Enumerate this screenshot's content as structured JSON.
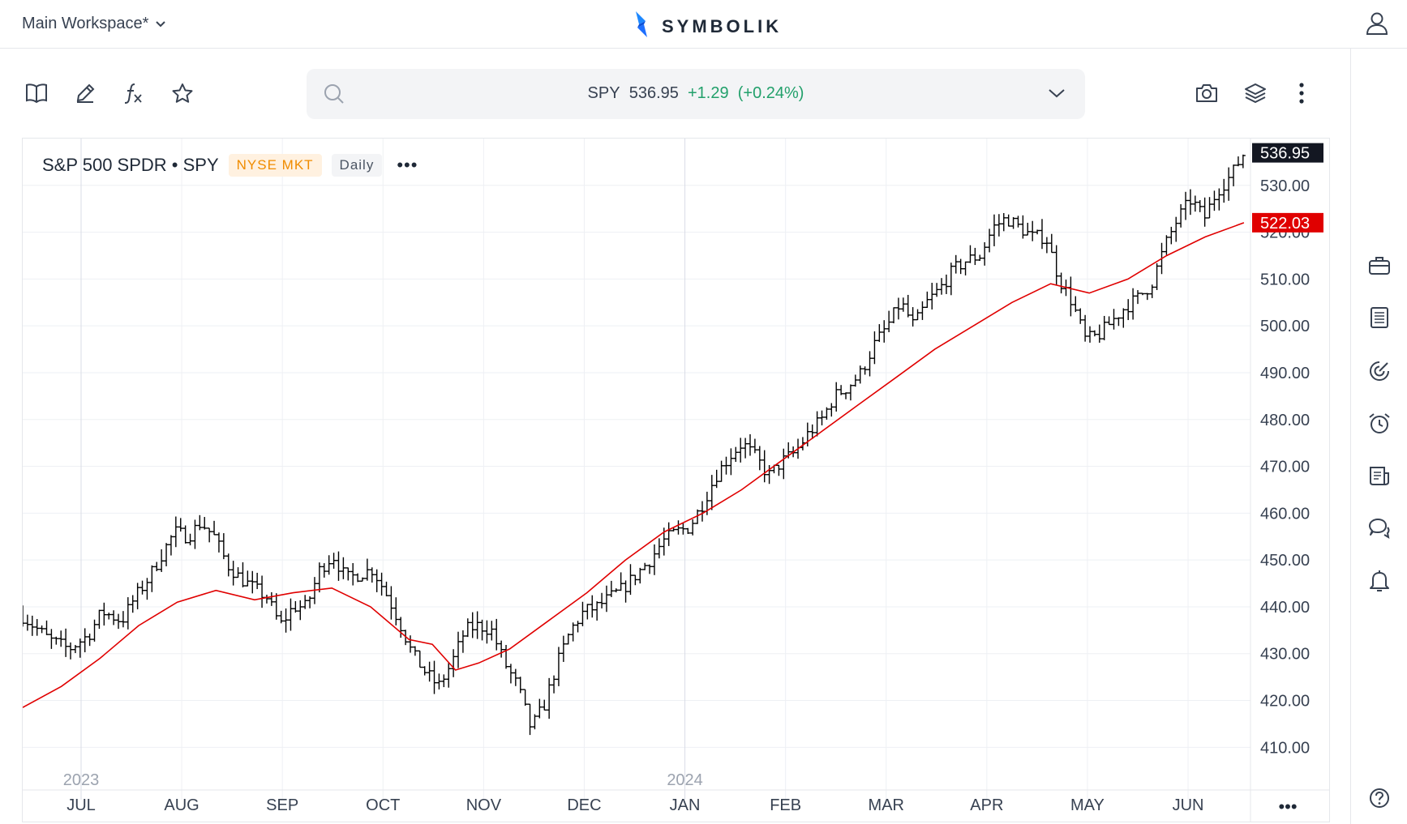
{
  "header": {
    "workspace_label": "Main Workspace*",
    "logo_text": "SYMBOLIK",
    "logo_color": "#1e88ff"
  },
  "search": {
    "symbol": "SPY",
    "price": "536.95",
    "change": "+1.29",
    "change_pct": "(+0.24%)",
    "change_color": "#22a06b"
  },
  "legend": {
    "title": "S&P 500 SPDR • SPY",
    "exchange": "NYSE MKT",
    "interval": "Daily",
    "more": "•••"
  },
  "toolbar": {
    "left_icons": [
      "book-icon",
      "pencil-icon",
      "function-icon",
      "star-icon"
    ],
    "right_icons": [
      "camera-icon",
      "layers-icon",
      "kebab-menu-icon"
    ]
  },
  "right_rail": {
    "icons": [
      "briefcase-icon",
      "list-icon",
      "radar-icon",
      "alarm-icon",
      "news-icon",
      "chat-icon",
      "bell-icon",
      "help-icon"
    ]
  },
  "bottom": {
    "more": "•••"
  },
  "chart_data": {
    "type": "ohlc",
    "title": "S&P 500 SPDR • SPY",
    "interval": "Daily",
    "x_axis": {
      "labels": [
        "JUL",
        "AUG",
        "SEP",
        "OCT",
        "NOV",
        "DEC",
        "JAN",
        "FEB",
        "MAR",
        "APR",
        "MAY",
        "JUN"
      ],
      "year_labels": [
        {
          "label": "2023",
          "month": "JUL"
        },
        {
          "label": "2024",
          "month": "JAN"
        }
      ]
    },
    "y_axis": {
      "ticks": [
        410,
        420,
        430,
        440,
        450,
        460,
        470,
        480,
        490,
        500,
        510,
        520,
        530
      ],
      "range": [
        404,
        540
      ]
    },
    "grid": true,
    "last_price": {
      "value": 536.95,
      "label": "536.95",
      "bg": "#131722"
    },
    "ma_value": {
      "value": 522.03,
      "label": "522.03",
      "bg": "#e00000"
    },
    "series": [
      {
        "name": "Price",
        "kind": "ohlc",
        "color": "#000000",
        "close_path": [
          [
            0,
            438
          ],
          [
            8,
            433
          ],
          [
            14,
            431
          ],
          [
            20,
            434
          ],
          [
            24,
            439
          ],
          [
            30,
            437
          ],
          [
            34,
            442
          ],
          [
            38,
            446
          ],
          [
            42,
            451
          ],
          [
            46,
            456
          ],
          [
            50,
            455
          ],
          [
            54,
            458
          ],
          [
            58,
            455
          ],
          [
            62,
            449
          ],
          [
            66,
            446
          ],
          [
            70,
            444
          ],
          [
            74,
            442
          ],
          [
            78,
            436
          ],
          [
            82,
            440
          ],
          [
            86,
            440
          ],
          [
            90,
            448
          ],
          [
            94,
            451
          ],
          [
            98,
            446
          ],
          [
            102,
            447
          ],
          [
            106,
            448
          ],
          [
            110,
            443
          ],
          [
            114,
            437
          ],
          [
            118,
            430
          ],
          [
            122,
            426
          ],
          [
            126,
            423
          ],
          [
            130,
            428
          ],
          [
            134,
            435
          ],
          [
            138,
            436
          ],
          [
            142,
            435
          ],
          [
            146,
            428
          ],
          [
            150,
            423
          ],
          [
            154,
            414
          ],
          [
            158,
            419
          ],
          [
            162,
            428
          ],
          [
            166,
            435
          ],
          [
            170,
            439
          ],
          [
            174,
            440
          ],
          [
            178,
            442
          ],
          [
            182,
            444
          ],
          [
            186,
            447
          ],
          [
            190,
            450
          ],
          [
            194,
            454
          ],
          [
            198,
            456
          ],
          [
            202,
            457
          ],
          [
            206,
            462
          ],
          [
            210,
            468
          ],
          [
            214,
            472
          ],
          [
            218,
            475
          ],
          [
            222,
            472
          ],
          [
            226,
            468
          ],
          [
            230,
            471
          ],
          [
            234,
            473
          ],
          [
            238,
            477
          ],
          [
            242,
            480
          ],
          [
            246,
            485
          ],
          [
            250,
            487
          ],
          [
            254,
            490
          ],
          [
            258,
            496
          ],
          [
            262,
            500
          ],
          [
            266,
            505
          ],
          [
            270,
            500
          ],
          [
            274,
            505
          ],
          [
            278,
            508
          ],
          [
            282,
            512
          ],
          [
            286,
            514
          ],
          [
            290,
            515
          ],
          [
            294,
            521
          ],
          [
            298,
            523
          ],
          [
            302,
            521
          ],
          [
            306,
            519
          ],
          [
            310,
            519
          ],
          [
            314,
            510
          ],
          [
            318,
            505
          ],
          [
            322,
            497
          ],
          [
            326,
            498
          ],
          [
            330,
            501
          ],
          [
            334,
            504
          ],
          [
            338,
            506
          ],
          [
            342,
            509
          ],
          [
            346,
            517
          ],
          [
            350,
            523
          ],
          [
            354,
            527
          ],
          [
            358,
            523
          ],
          [
            362,
            529
          ],
          [
            366,
            532
          ],
          [
            370,
            536.95
          ]
        ]
      },
      {
        "name": "Moving Average",
        "kind": "line",
        "color": "#e00000",
        "points": [
          [
            0,
            418.5
          ],
          [
            10,
            423
          ],
          [
            20,
            429
          ],
          [
            30,
            436
          ],
          [
            40,
            441
          ],
          [
            50,
            443.5
          ],
          [
            60,
            441.5
          ],
          [
            70,
            443
          ],
          [
            80,
            444
          ],
          [
            90,
            440
          ],
          [
            100,
            433
          ],
          [
            106,
            432
          ],
          [
            112,
            426.5
          ],
          [
            118,
            428
          ],
          [
            126,
            431
          ],
          [
            136,
            437
          ],
          [
            146,
            443
          ],
          [
            156,
            450
          ],
          [
            166,
            456
          ],
          [
            176,
            460
          ],
          [
            186,
            465
          ],
          [
            196,
            471
          ],
          [
            206,
            477
          ],
          [
            216,
            483
          ],
          [
            226,
            489
          ],
          [
            236,
            495
          ],
          [
            246,
            500
          ],
          [
            256,
            505
          ],
          [
            266,
            509
          ],
          [
            276,
            507
          ],
          [
            286,
            510
          ],
          [
            296,
            515
          ],
          [
            306,
            519
          ],
          [
            316,
            522.03
          ]
        ]
      }
    ]
  }
}
